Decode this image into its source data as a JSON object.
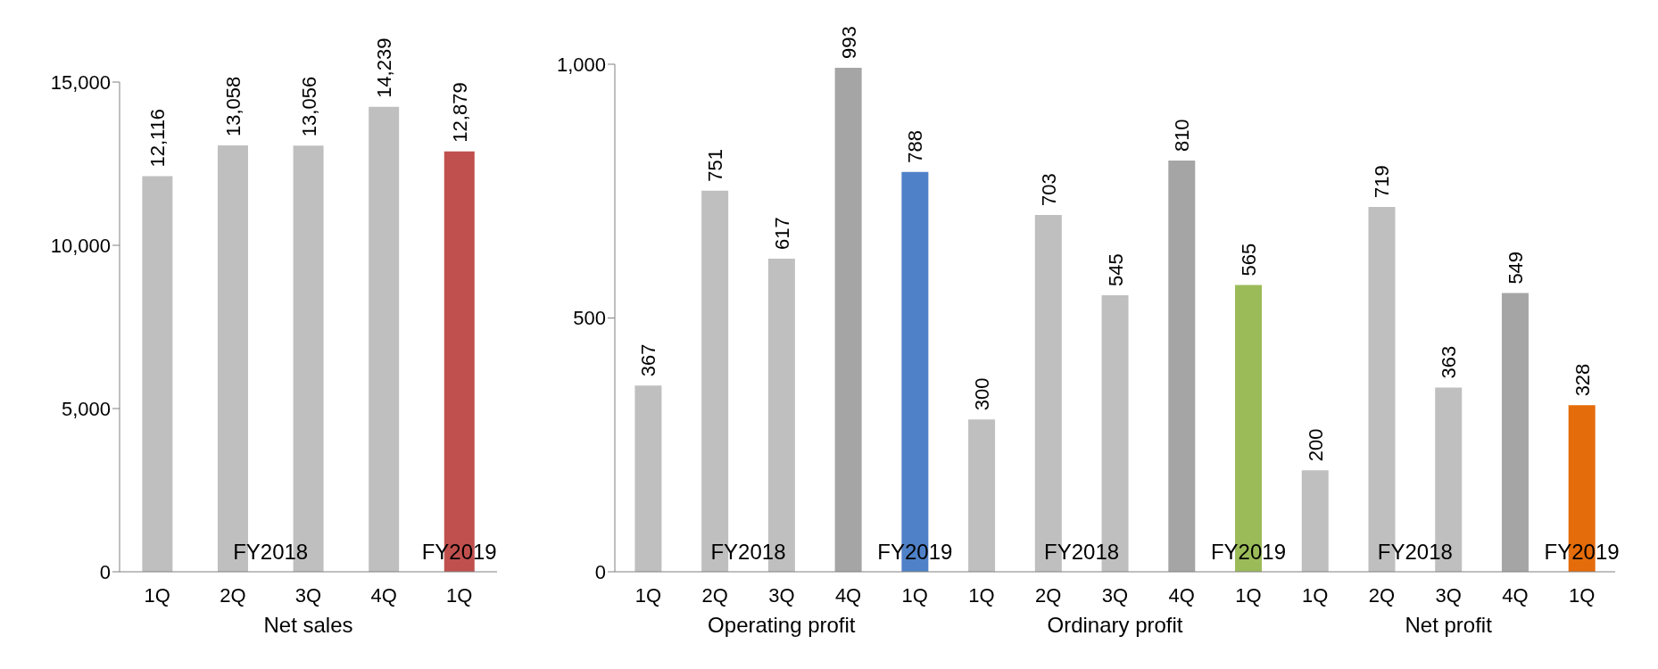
{
  "chart_data": [
    {
      "type": "bar",
      "categories": [
        "1Q",
        "2Q",
        "3Q",
        "4Q",
        "1Q"
      ],
      "values": [
        12116,
        13058,
        13056,
        14239,
        12879
      ],
      "colors": [
        "#bfbfbf",
        "#bfbfbf",
        "#bfbfbf",
        "#bfbfbf",
        "#c0504d"
      ],
      "ylim": [
        0,
        15000
      ],
      "yticks": [
        {
          "value": 0,
          "label": "0"
        },
        {
          "value": 5000,
          "label": "5,000"
        },
        {
          "value": 10000,
          "label": "10,000"
        },
        {
          "value": 15000,
          "label": "15,000"
        }
      ],
      "xlabel": "Net sales",
      "annotations": [
        "FY2018",
        "FY2019"
      ],
      "value_labels": [
        "12,116",
        "13,058",
        "13,056",
        "14,239",
        "12,879"
      ],
      "grid": false,
      "legend": false
    },
    {
      "type": "bar",
      "categories": [
        "1Q",
        "2Q",
        "3Q",
        "4Q",
        "1Q",
        "1Q",
        "2Q",
        "3Q",
        "4Q",
        "1Q",
        "1Q",
        "2Q",
        "3Q",
        "4Q",
        "1Q"
      ],
      "values": [
        367,
        751,
        617,
        993,
        788,
        300,
        703,
        545,
        810,
        565,
        200,
        719,
        363,
        549,
        328
      ],
      "colors": [
        "#bfbfbf",
        "#bfbfbf",
        "#bfbfbf",
        "#a5a5a5",
        "#4f81c8",
        "#bfbfbf",
        "#bfbfbf",
        "#bfbfbf",
        "#a5a5a5",
        "#9bbb59",
        "#bfbfbf",
        "#bfbfbf",
        "#bfbfbf",
        "#a5a5a5",
        "#e46c0a"
      ],
      "ylim": [
        0,
        1000
      ],
      "yticks": [
        0,
        500,
        {
          "value": 1000,
          "label": "1,000"
        }
      ],
      "annotations": [
        "FY2018",
        "FY2019",
        "FY2018",
        "FY2019",
        "FY2018",
        "FY2019",
        "Operating profit",
        "Ordinary profit",
        "Net profit"
      ],
      "data_labels": true,
      "grid": false,
      "legend": false
    }
  ]
}
